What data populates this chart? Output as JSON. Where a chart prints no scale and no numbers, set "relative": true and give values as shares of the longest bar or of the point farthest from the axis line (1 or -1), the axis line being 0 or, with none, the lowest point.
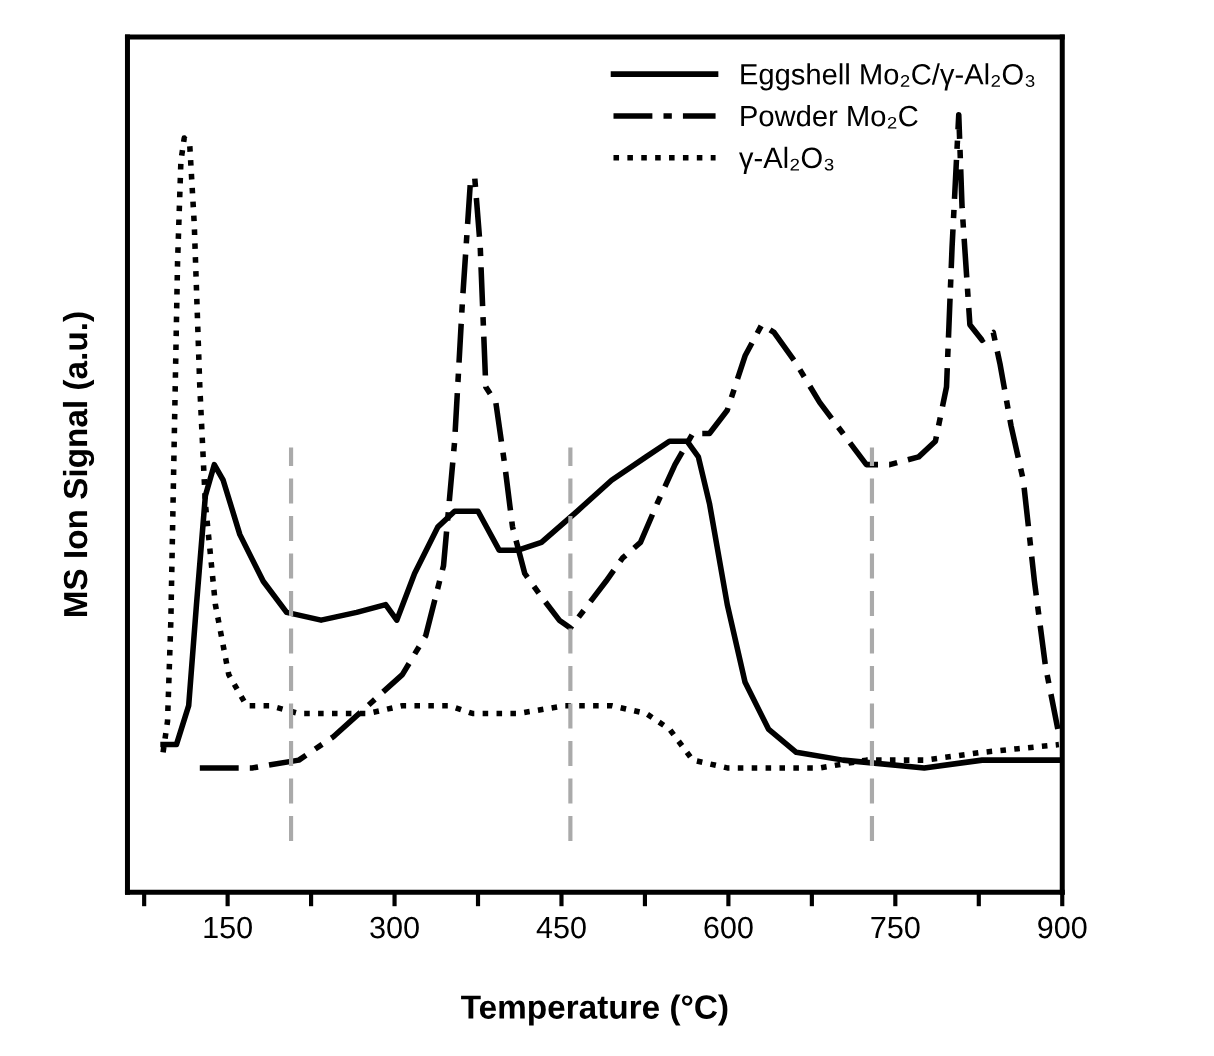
{
  "chart_data": {
    "type": "line",
    "relative": true,
    "xlabel": "Temperature (°C)",
    "ylabel": "MS Ion Signal (a.u.)",
    "xlim": [
      60,
      900
    ],
    "xticks": [
      {
        "value": 75,
        "label": null
      },
      150,
      {
        "value": 225,
        "label": null
      },
      300,
      {
        "value": 375,
        "label": null
      },
      450,
      {
        "value": 525,
        "label": null
      },
      600,
      {
        "value": 675,
        "label": null
      },
      750,
      {
        "value": 825,
        "label": null
      },
      900
    ],
    "legend": "top right",
    "grid": false,
    "ref_lines": [
      {
        "axis": "x",
        "value": 207,
        "color": "#aaaaaa",
        "line_style": "dashed"
      },
      {
        "axis": "x",
        "value": 458,
        "color": "#aaaaaa",
        "line_style": "dashed"
      },
      {
        "axis": "x",
        "value": 729,
        "color": "#aaaaaa",
        "line_style": "dashed"
      }
    ],
    "series": [
      {
        "name": "Eggshell Mo₂C/γ-Al₂O₃",
        "color": "#000000",
        "line_style": "solid",
        "x": [
          92,
          104,
          115,
          122,
          130,
          138,
          146,
          161,
          182,
          203,
          234,
          266,
          292,
          302,
          318,
          339,
          354,
          375,
          394,
          411,
          432,
          464,
          495,
          526,
          547,
          563,
          573,
          583,
          599,
          615,
          636,
          661,
          703,
          776,
          828,
          897
        ],
        "values": [
          0.19,
          0.19,
          0.24,
          0.37,
          0.51,
          0.55,
          0.53,
          0.46,
          0.4,
          0.36,
          0.35,
          0.36,
          0.37,
          0.35,
          0.41,
          0.47,
          0.49,
          0.49,
          0.44,
          0.44,
          0.45,
          0.49,
          0.53,
          0.56,
          0.58,
          0.58,
          0.56,
          0.5,
          0.37,
          0.27,
          0.21,
          0.18,
          0.17,
          0.16,
          0.17,
          0.17
        ]
      },
      {
        "name": "Powder Mo₂C",
        "color": "#000000",
        "line_style": "dashdot",
        "x": [
          125,
          172,
          214,
          245,
          276,
          307,
          328,
          344,
          354,
          361,
          368,
          372,
          377,
          382,
          391,
          399,
          406,
          417,
          432,
          448,
          458,
          474,
          490,
          505,
          521,
          536,
          552,
          568,
          583,
          599,
          615,
          630,
          641,
          661,
          682,
          703,
          724,
          745,
          771,
          786,
          796,
          801,
          807,
          810,
          817,
          828,
          838,
          844,
          854,
          865,
          875,
          885,
          896
        ],
        "values": [
          0.16,
          0.16,
          0.17,
          0.2,
          0.24,
          0.28,
          0.33,
          0.42,
          0.58,
          0.76,
          0.91,
          0.92,
          0.83,
          0.65,
          0.63,
          0.55,
          0.47,
          0.41,
          0.38,
          0.35,
          0.34,
          0.37,
          0.4,
          0.43,
          0.45,
          0.5,
          0.55,
          0.59,
          0.59,
          0.62,
          0.69,
          0.73,
          0.72,
          0.68,
          0.63,
          0.59,
          0.55,
          0.55,
          0.56,
          0.58,
          0.65,
          0.83,
          1.0,
          0.88,
          0.73,
          0.71,
          0.72,
          0.68,
          0.6,
          0.53,
          0.4,
          0.29,
          0.21
        ]
      },
      {
        "name": "γ-Al₂O₃",
        "color": "#000000",
        "line_style": "dotted",
        "x": [
          92,
          96,
          99,
          102,
          105,
          108,
          111,
          116,
          120,
          125,
          130,
          139,
          151,
          167,
          188,
          214,
          245,
          276,
          307,
          349,
          370,
          411,
          453,
          474,
          495,
          526,
          547,
          568,
          599,
          641,
          682,
          724,
          776,
          828,
          897
        ],
        "values": [
          0.18,
          0.22,
          0.35,
          0.58,
          0.81,
          0.94,
          0.97,
          0.96,
          0.86,
          0.65,
          0.5,
          0.37,
          0.28,
          0.24,
          0.24,
          0.23,
          0.23,
          0.23,
          0.24,
          0.24,
          0.23,
          0.23,
          0.24,
          0.24,
          0.24,
          0.23,
          0.21,
          0.17,
          0.16,
          0.16,
          0.16,
          0.17,
          0.17,
          0.18,
          0.19
        ]
      }
    ]
  }
}
